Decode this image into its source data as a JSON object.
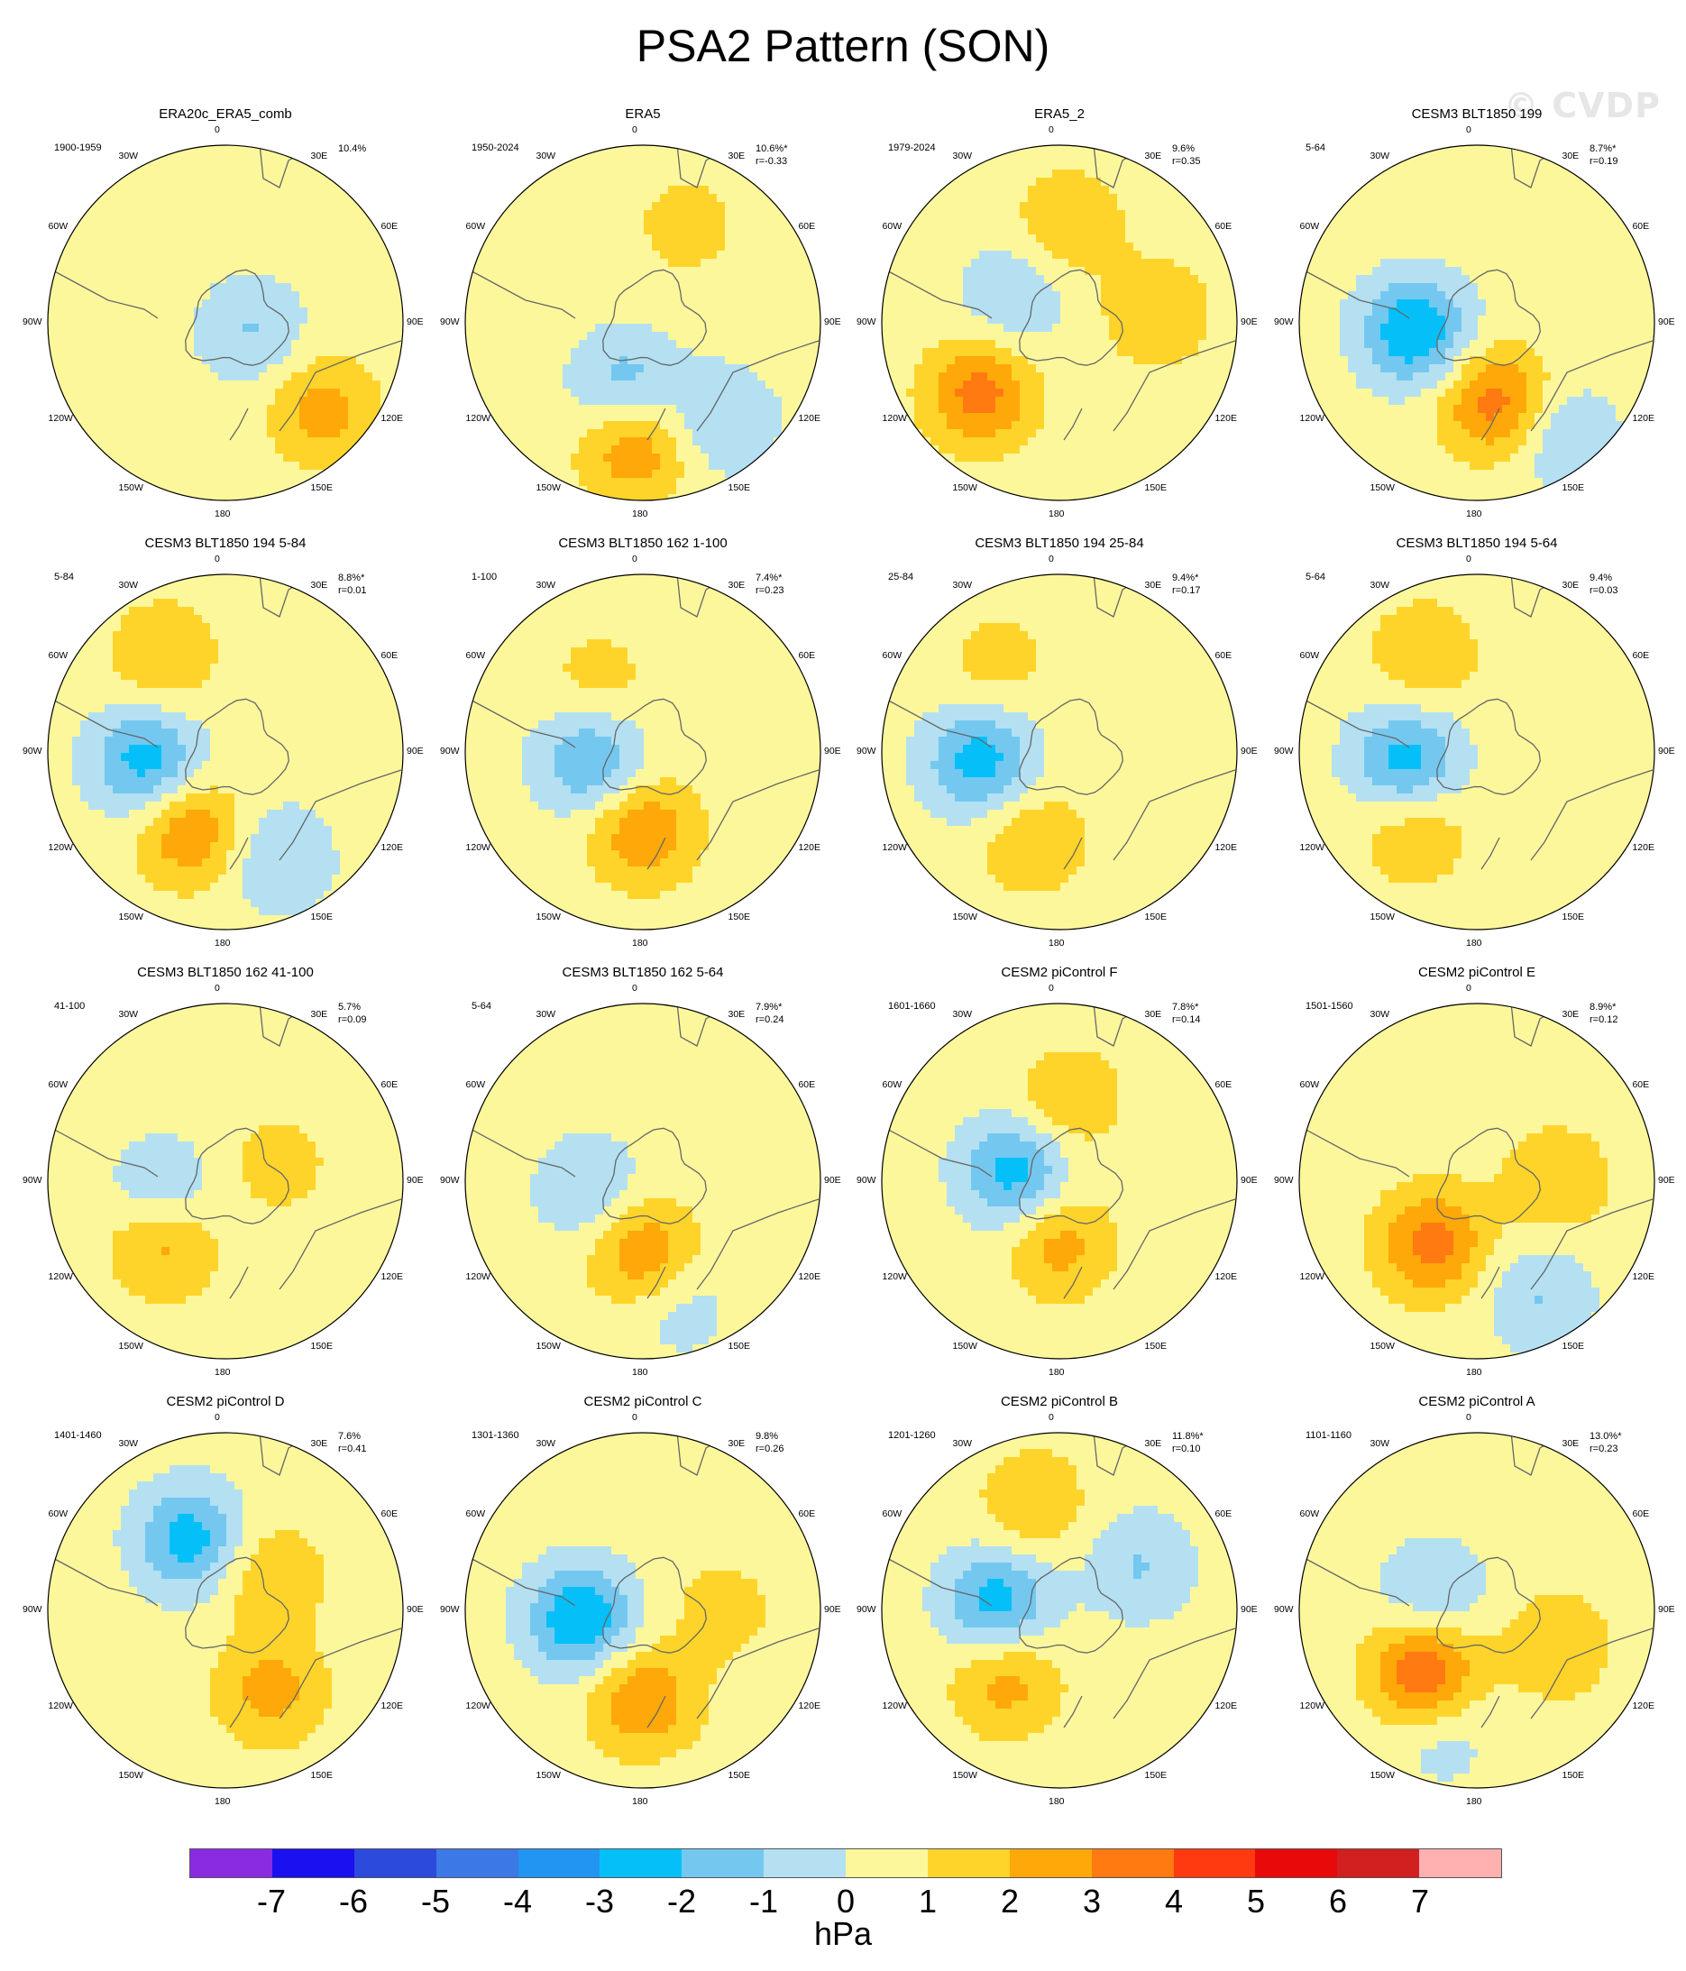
{
  "title": "PSA2 Pattern (SON)",
  "watermark": "© CVDP",
  "units": "hPa",
  "lon_labels": [
    "0",
    "30E",
    "60E",
    "90E",
    "120E",
    "150E",
    "180",
    "150W",
    "120W",
    "90W",
    "60W",
    "30W"
  ],
  "colorbar": {
    "colors": [
      "#8a2be2",
      "#1a10f0",
      "#2c4adc",
      "#3c78e6",
      "#2294f2",
      "#05c0f8",
      "#74c8f0",
      "#b4e0f2",
      "#fdf79c",
      "#ffd42a",
      "#ffa80a",
      "#ff7a10",
      "#ff3a10",
      "#e80a0a",
      "#d22020",
      "#ffb0b0"
    ],
    "ticks": [
      "-7",
      "-6",
      "-5",
      "-4",
      "-3",
      "-2",
      "-1",
      "0",
      "1",
      "2",
      "3",
      "4",
      "5",
      "6",
      "7"
    ]
  },
  "panels": [
    {
      "title": "ERA20c_ERA5_comb",
      "period": "1900-1959",
      "pct": "10.4%",
      "r": ""
    },
    {
      "title": "ERA5",
      "period": "1950-2024",
      "pct": "10.6%*",
      "r": "r=-0.33"
    },
    {
      "title": "ERA5_2",
      "period": "1979-2024",
      "pct": "9.6%",
      "r": "r=0.35"
    },
    {
      "title": "CESM3 BLT1850 199",
      "period": "5-64",
      "pct": "8.7%*",
      "r": "r=0.19"
    },
    {
      "title": "CESM3 BLT1850 194 5-84",
      "period": "5-84",
      "pct": "8.8%*",
      "r": "r=0.01"
    },
    {
      "title": "CESM3 BLT1850 162 1-100",
      "period": "1-100",
      "pct": "7.4%*",
      "r": "r=0.23"
    },
    {
      "title": "CESM3 BLT1850 194 25-84",
      "period": "25-84",
      "pct": "9.4%*",
      "r": "r=0.17"
    },
    {
      "title": "CESM3 BLT1850 194 5-64",
      "period": "5-64",
      "pct": "9.4%",
      "r": "r=0.03"
    },
    {
      "title": "CESM3 BLT1850 162 41-100",
      "period": "41-100",
      "pct": "5.7%",
      "r": "r=0.09"
    },
    {
      "title": "CESM3 BLT1850 162 5-64",
      "period": "5-64",
      "pct": "7.9%*",
      "r": "r=0.24"
    },
    {
      "title": "CESM2 piControl F",
      "period": "1601-1660",
      "pct": "7.8%*",
      "r": "r=0.14"
    },
    {
      "title": "CESM2 piControl E",
      "period": "1501-1560",
      "pct": "8.9%*",
      "r": "r=0.12"
    },
    {
      "title": "CESM2 piControl D",
      "period": "1401-1460",
      "pct": "7.6%",
      "r": "r=0.41"
    },
    {
      "title": "CESM2 piControl C",
      "period": "1301-1360",
      "pct": "9.8%",
      "r": "r=0.26"
    },
    {
      "title": "CESM2 piControl B",
      "period": "1201-1260",
      "pct": "11.8%*",
      "r": "r=0.10"
    },
    {
      "title": "CESM2 piControl A",
      "period": "1101-1160",
      "pct": "13.0%*",
      "r": "r=0.23"
    }
  ],
  "anomaly_centers": [
    [
      [
        -1.5,
        0.15,
        0.05
      ],
      [
        2,
        0.55,
        0.5
      ]
    ],
    [
      [
        -2,
        -0.1,
        0.35
      ],
      [
        2.5,
        -0.05,
        0.7
      ],
      [
        -1.5,
        0.45,
        0.55
      ],
      [
        1,
        0.25,
        -0.55
      ]
    ],
    [
      [
        3,
        -0.45,
        0.4
      ],
      [
        1.5,
        0.05,
        -0.55
      ],
      [
        1.5,
        0.55,
        -0.05
      ],
      [
        -1.5,
        -0.25,
        -0.15
      ]
    ],
    [
      [
        -3.5,
        -0.35,
        0.05
      ],
      [
        3,
        0.1,
        0.45
      ],
      [
        -1.5,
        0.5,
        0.65
      ]
    ],
    [
      [
        -3,
        -0.45,
        0.05
      ],
      [
        2.5,
        -0.2,
        0.45
      ],
      [
        1.5,
        -0.35,
        -0.55
      ],
      [
        -1.5,
        0.3,
        0.6
      ]
    ],
    [
      [
        -2.5,
        -0.3,
        0.05
      ],
      [
        2.5,
        0,
        0.45
      ],
      [
        1,
        -0.25,
        -0.4
      ]
    ],
    [
      [
        -3,
        -0.45,
        0.05
      ],
      [
        1.5,
        -0.15,
        0.5
      ],
      [
        1,
        -0.35,
        -0.5
      ]
    ],
    [
      [
        -3,
        -0.4,
        0.05
      ],
      [
        1.5,
        -0.35,
        0.45
      ],
      [
        1.5,
        -0.3,
        -0.55
      ]
    ],
    [
      [
        -1.5,
        -0.35,
        0.05
      ],
      [
        2,
        -0.35,
        0.35
      ],
      [
        1,
        0.3,
        -0.1
      ]
    ],
    [
      [
        -1.5,
        -0.3,
        0.05
      ],
      [
        2.5,
        0,
        0.4
      ],
      [
        -1,
        0.2,
        0.7
      ]
    ],
    [
      [
        -3,
        -0.25,
        -0.05
      ],
      [
        2,
        0,
        0.35
      ],
      [
        1.5,
        0.05,
        -0.45
      ]
    ],
    [
      [
        3,
        -0.25,
        0.35
      ],
      [
        -1.5,
        0.35,
        0.65
      ],
      [
        1.5,
        0.45,
        0
      ]
    ],
    [
      [
        -3,
        -0.2,
        -0.4
      ],
      [
        2,
        0.25,
        0.45
      ],
      [
        1.5,
        0.25,
        -0.2
      ]
    ],
    [
      [
        -3.5,
        -0.35,
        0.05
      ],
      [
        2.5,
        0,
        0.5
      ],
      [
        1,
        0.45,
        0
      ]
    ],
    [
      [
        -3,
        -0.35,
        -0.05
      ],
      [
        2,
        -0.3,
        0.4
      ],
      [
        -1.5,
        0.45,
        -0.25
      ],
      [
        1.5,
        -0.15,
        -0.6
      ]
    ],
    [
      [
        3.5,
        -0.3,
        0.35
      ],
      [
        -1.5,
        -0.25,
        -0.1
      ],
      [
        1.5,
        0.45,
        0.2
      ],
      [
        -1,
        -0.2,
        0.7
      ]
    ]
  ]
}
